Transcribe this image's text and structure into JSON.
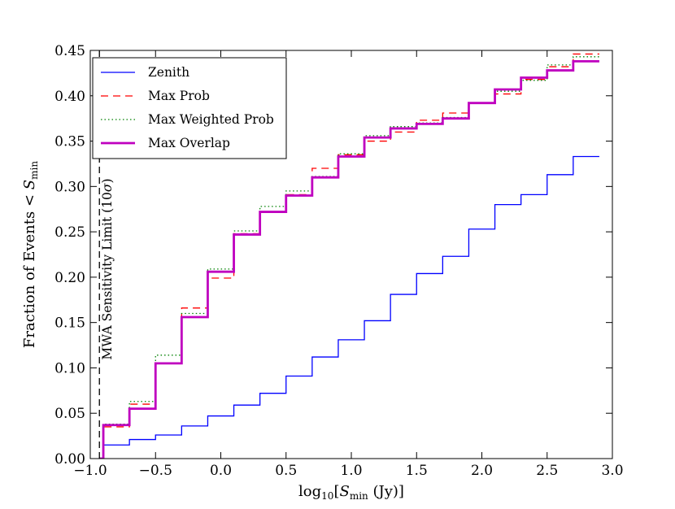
{
  "chart_data": {
    "type": "line",
    "subtype": "step",
    "title": "",
    "xlabel": "log10[S_min (Jy)]",
    "xlabel_main": "log",
    "xlabel_sub": "10",
    "xlabel_rest_pre": "[",
    "xlabel_S": "S",
    "xlabel_S_sub": "min",
    "xlabel_rest_post": " (Jy)]",
    "ylabel": "Fraction of Events < S_min",
    "ylabel_main": "Fraction of Events < ",
    "ylabel_S": "S",
    "ylabel_S_sub": "min",
    "xlim": [
      -1.0,
      3.0
    ],
    "ylim": [
      0.0,
      0.45
    ],
    "xticks": [
      -1.0,
      -0.5,
      0.0,
      0.5,
      1.0,
      1.5,
      2.0,
      2.5,
      3.0
    ],
    "xtick_labels": [
      "−1.0",
      "−0.5",
      "0.0",
      "0.5",
      "1.0",
      "1.5",
      "2.0",
      "2.5",
      "3.0"
    ],
    "yticks": [
      0.0,
      0.05,
      0.1,
      0.15,
      0.2,
      0.25,
      0.3,
      0.35,
      0.4,
      0.45
    ],
    "ytick_labels": [
      "0.00",
      "0.05",
      "0.10",
      "0.15",
      "0.20",
      "0.25",
      "0.30",
      "0.35",
      "0.40",
      "0.45"
    ],
    "grid": false,
    "legend_position": "top-left",
    "step_edges": [
      -0.93,
      -0.9,
      -0.7,
      -0.5,
      -0.3,
      -0.1,
      0.1,
      0.3,
      0.5,
      0.7,
      0.9,
      1.1,
      1.3,
      1.5,
      1.7,
      1.9,
      2.1,
      2.3,
      2.5,
      2.7,
      2.9
    ],
    "series": [
      {
        "name": "Zenith",
        "color": "#0000ff",
        "style": "solid",
        "width": 1.3,
        "values": [
          0.0,
          0.015,
          0.021,
          0.026,
          0.036,
          0.047,
          0.059,
          0.072,
          0.091,
          0.112,
          0.131,
          0.152,
          0.181,
          0.204,
          0.223,
          0.253,
          0.28,
          0.291,
          0.313,
          0.333
        ]
      },
      {
        "name": "Max Prob",
        "color": "#ff0000",
        "style": "dashed",
        "width": 1.3,
        "values": [
          0.0,
          0.035,
          0.06,
          0.105,
          0.166,
          0.199,
          0.248,
          0.272,
          0.291,
          0.32,
          0.335,
          0.35,
          0.36,
          0.373,
          0.381,
          0.392,
          0.402,
          0.418,
          0.432,
          0.446
        ]
      },
      {
        "name": "Max Weighted Prob",
        "color": "#008000",
        "style": "dotted",
        "width": 1.3,
        "values": [
          0.0,
          0.038,
          0.063,
          0.114,
          0.16,
          0.209,
          0.251,
          0.278,
          0.295,
          0.311,
          0.336,
          0.356,
          0.366,
          0.37,
          0.376,
          0.392,
          0.405,
          0.417,
          0.434,
          0.443
        ]
      },
      {
        "name": "Max Overlap",
        "color": "#bf00bf",
        "style": "solid",
        "width": 2.8,
        "values": [
          0.0,
          0.037,
          0.055,
          0.105,
          0.156,
          0.206,
          0.247,
          0.272,
          0.29,
          0.31,
          0.333,
          0.354,
          0.364,
          0.369,
          0.375,
          0.392,
          0.407,
          0.42,
          0.428,
          0.438
        ]
      }
    ],
    "annotations": [
      {
        "text": "MWA Sensitivity Limit (10σ)",
        "text_main": "MWA Sensitivity Limit (10",
        "text_sigma": "σ",
        "text_close": ")",
        "x": -0.93,
        "type": "vertical-dashed-line",
        "color": "#000000"
      }
    ]
  }
}
